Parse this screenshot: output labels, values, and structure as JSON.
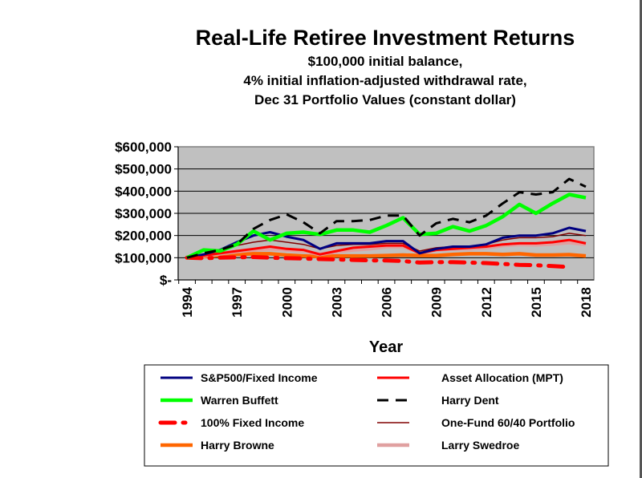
{
  "chart_data": {
    "type": "line",
    "title": "Real-Life Retiree Investment Returns",
    "subtitle": [
      "$100,000 initial balance,",
      "4% initial inflation-adjusted withdrawal rate,",
      "Dec 31 Portfolio Values (constant dollar)"
    ],
    "xlabel": "Year",
    "ylabel": "",
    "ylim": [
      0,
      600000
    ],
    "xlim": [
      1994,
      2018
    ],
    "yticks": [
      0,
      100000,
      200000,
      300000,
      400000,
      500000,
      600000
    ],
    "ytick_labels": [
      "$-",
      "$100,000",
      "$200,000",
      "$300,000",
      "$400,000",
      "$500,000",
      "$600,000"
    ],
    "xtick_labels": [
      "1994",
      "1997",
      "2000",
      "2003",
      "2006",
      "2009",
      "2012",
      "2015",
      "2018"
    ],
    "x": [
      1994,
      1995,
      1996,
      1997,
      1998,
      1999,
      2000,
      2001,
      2002,
      2003,
      2004,
      2005,
      2006,
      2007,
      2008,
      2009,
      2010,
      2011,
      2012,
      2013,
      2014,
      2015,
      2016,
      2017,
      2018
    ],
    "grid": true,
    "legend_position": "bottom",
    "series": [
      {
        "name": "S&P500/Fixed Income",
        "color": "#000080",
        "style": "solid",
        "values": [
          100000,
          115000,
          135000,
          170000,
          200000,
          215000,
          195000,
          180000,
          140000,
          165000,
          165000,
          165000,
          175000,
          175000,
          120000,
          140000,
          150000,
          150000,
          160000,
          190000,
          200000,
          200000,
          210000,
          235000,
          220000
        ]
      },
      {
        "name": "Asset Allocation (MPT)",
        "color": "#ff0000",
        "style": "solid",
        "values": [
          100000,
          110000,
          120000,
          130000,
          140000,
          150000,
          140000,
          135000,
          115000,
          130000,
          145000,
          150000,
          155000,
          155000,
          120000,
          135000,
          140000,
          145000,
          150000,
          160000,
          165000,
          165000,
          170000,
          180000,
          165000
        ]
      },
      {
        "name": "Warren Buffett",
        "color": "#00ff00",
        "style": "solid-thick",
        "values": [
          100000,
          135000,
          130000,
          160000,
          220000,
          180000,
          210000,
          215000,
          205000,
          225000,
          225000,
          215000,
          245000,
          280000,
          205000,
          210000,
          240000,
          220000,
          245000,
          285000,
          340000,
          300000,
          345000,
          385000,
          370000
        ]
      },
      {
        "name": "Harry Dent",
        "color": "#000000",
        "style": "dash",
        "values": [
          100000,
          120000,
          135000,
          160000,
          230000,
          270000,
          295000,
          260000,
          210000,
          265000,
          265000,
          270000,
          290000,
          290000,
          200000,
          255000,
          275000,
          260000,
          290000,
          345000,
          395000,
          385000,
          395000,
          455000,
          420000
        ]
      },
      {
        "name": "100% Fixed Income",
        "color": "#ff0000",
        "style": "dash-dot",
        "values": [
          100000,
          98000,
          100000,
          102000,
          103000,
          100000,
          98000,
          96000,
          94000,
          92000,
          90000,
          88000,
          88000,
          85000,
          78000,
          80000,
          80000,
          78000,
          76000,
          72000,
          68000,
          66000,
          62000,
          58000,
          null
        ]
      },
      {
        "name": "One-Fund 60/40 Portfolio",
        "color": "#800000",
        "style": "solid-thin",
        "values": [
          100000,
          112000,
          130000,
          155000,
          170000,
          180000,
          170000,
          160000,
          140000,
          155000,
          160000,
          160000,
          165000,
          165000,
          130000,
          145000,
          150000,
          150000,
          160000,
          180000,
          190000,
          190000,
          195000,
          210000,
          200000
        ]
      },
      {
        "name": "Harry Browne",
        "color": "#ff6600",
        "style": "solid-thick",
        "values": [
          100000,
          105000,
          110000,
          115000,
          118000,
          118000,
          112000,
          108000,
          105000,
          108000,
          108000,
          108000,
          110000,
          112000,
          110000,
          110000,
          115000,
          118000,
          118000,
          115000,
          118000,
          112000,
          112000,
          114000,
          108000
        ]
      },
      {
        "name": "Larry Swedroe",
        "color": "#e0a0a0",
        "style": "solid-thick",
        "values": [
          100000,
          108000,
          118000,
          128000,
          135000,
          140000,
          135000,
          130000,
          115000,
          128000,
          135000,
          140000,
          150000,
          150000,
          125000,
          135000,
          140000,
          140000,
          145000,
          155000,
          160000,
          158000,
          162000,
          168000,
          160000
        ]
      }
    ]
  }
}
